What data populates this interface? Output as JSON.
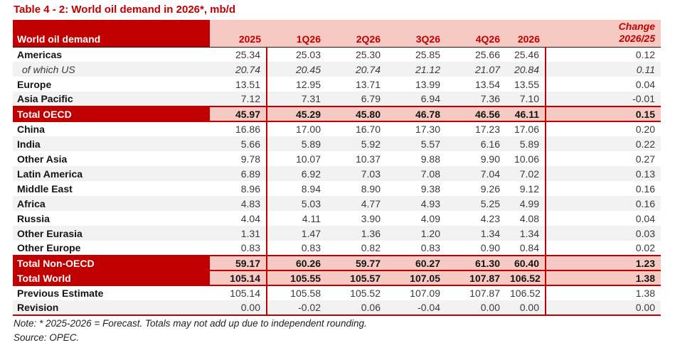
{
  "title": "Table 4 - 2: World oil demand in 2026*, mb/d",
  "colors": {
    "dark_red": "#C00000",
    "pink_header": "#F6C9C3",
    "row_alt_gray": "#F2F2F2"
  },
  "header": {
    "label": "World oil demand",
    "cols": [
      "2025",
      "1Q26",
      "2Q26",
      "3Q26",
      "4Q26",
      "2026"
    ],
    "change_line1": "Change",
    "change_line2": "2026/25"
  },
  "chart_data": {
    "type": "table",
    "title": "Table 4 - 2: World oil demand in 2026*, mb/d",
    "columns": [
      "World oil demand",
      "2025",
      "1Q26",
      "2Q26",
      "3Q26",
      "4Q26",
      "2026",
      "Change 2026/25"
    ],
    "rows": [
      {
        "label": "Americas",
        "values": [
          "25.34",
          "25.03",
          "25.30",
          "25.85",
          "25.66",
          "25.46",
          "0.12"
        ]
      },
      {
        "label": "of which US",
        "values": [
          "20.74",
          "20.45",
          "20.74",
          "21.12",
          "21.07",
          "20.84",
          "0.11"
        ]
      },
      {
        "label": "Europe",
        "values": [
          "13.51",
          "12.95",
          "13.71",
          "13.99",
          "13.54",
          "13.55",
          "0.04"
        ]
      },
      {
        "label": "Asia Pacific",
        "values": [
          "7.12",
          "7.31",
          "6.79",
          "6.94",
          "7.36",
          "7.10",
          "-0.01"
        ]
      },
      {
        "label": "Total OECD",
        "values": [
          "45.97",
          "45.29",
          "45.80",
          "46.78",
          "46.56",
          "46.11",
          "0.15"
        ]
      },
      {
        "label": "China",
        "values": [
          "16.86",
          "17.00",
          "16.70",
          "17.30",
          "17.23",
          "17.06",
          "0.20"
        ]
      },
      {
        "label": "India",
        "values": [
          "5.66",
          "5.89",
          "5.92",
          "5.57",
          "6.16",
          "5.89",
          "0.22"
        ]
      },
      {
        "label": "Other Asia",
        "values": [
          "9.78",
          "10.07",
          "10.37",
          "9.88",
          "9.90",
          "10.06",
          "0.27"
        ]
      },
      {
        "label": "Latin America",
        "values": [
          "6.89",
          "6.92",
          "7.03",
          "7.08",
          "7.04",
          "7.02",
          "0.13"
        ]
      },
      {
        "label": "Middle East",
        "values": [
          "8.96",
          "8.94",
          "8.90",
          "9.38",
          "9.26",
          "9.12",
          "0.16"
        ]
      },
      {
        "label": "Africa",
        "values": [
          "4.83",
          "5.03",
          "4.77",
          "4.93",
          "5.25",
          "4.99",
          "0.16"
        ]
      },
      {
        "label": "Russia",
        "values": [
          "4.04",
          "4.11",
          "3.90",
          "4.09",
          "4.23",
          "4.08",
          "0.04"
        ]
      },
      {
        "label": "Other Eurasia",
        "values": [
          "1.31",
          "1.47",
          "1.36",
          "1.20",
          "1.34",
          "1.34",
          "0.03"
        ]
      },
      {
        "label": "Other Europe",
        "values": [
          "0.83",
          "0.83",
          "0.82",
          "0.83",
          "0.90",
          "0.84",
          "0.02"
        ]
      },
      {
        "label": "Total Non-OECD",
        "values": [
          "59.17",
          "60.26",
          "59.77",
          "60.27",
          "61.30",
          "60.40",
          "1.23"
        ]
      },
      {
        "label": "Total World",
        "values": [
          "105.14",
          "105.55",
          "105.57",
          "107.05",
          "107.87",
          "106.52",
          "1.38"
        ]
      },
      {
        "label": "Previous Estimate",
        "values": [
          "105.14",
          "105.58",
          "105.52",
          "107.09",
          "107.87",
          "106.52",
          "1.38"
        ]
      },
      {
        "label": "Revision",
        "values": [
          "0.00",
          "-0.02",
          "0.06",
          "-0.04",
          "0.00",
          "0.00",
          "0.00"
        ]
      }
    ]
  },
  "notes": {
    "note": "Note: * 2025-2026 = Forecast. Totals may not add up due to independent rounding.",
    "source": "Source: OPEC."
  }
}
